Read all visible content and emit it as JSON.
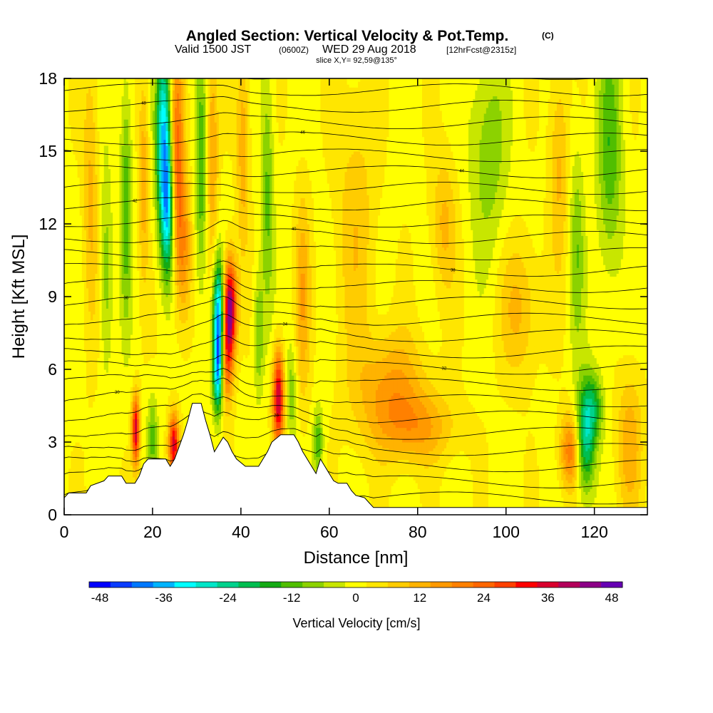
{
  "chart_data": {
    "type": "heatmap",
    "title": "Angled Section: Vertical Velocity & Pot.Temp.",
    "title_units": "(C)",
    "subtitle_prefix": "Valid 1500 JST",
    "subtitle_utc": "(0600Z)",
    "subtitle_date": "WED 29 Aug 2018",
    "subtitle_forecast": "[12hrFcst@2315z]",
    "slice_label": "slice X,Y= 92,59@135°",
    "xlabel": "Distance [nm]",
    "ylabel": "Height [Kft MSL]",
    "xlim": [
      0,
      132
    ],
    "ylim": [
      0,
      18
    ],
    "x_ticks": [
      0,
      20,
      40,
      60,
      80,
      100,
      120
    ],
    "y_ticks": [
      0,
      3,
      6,
      9,
      12,
      15,
      18
    ],
    "colorbar": {
      "label": "Vertical Velocity [cm/s]",
      "min": -48,
      "max": 48,
      "step": 4,
      "tick_values": [
        -48,
        -36,
        -24,
        -12,
        0,
        12,
        24,
        36,
        48
      ],
      "colors": [
        "#0000ff",
        "#0a3cff",
        "#0078ff",
        "#00b4ff",
        "#00ffff",
        "#00e6c8",
        "#00d28c",
        "#00be50",
        "#14aa14",
        "#50be00",
        "#8cd200",
        "#c8e600",
        "#ffff00",
        "#ffe600",
        "#ffcc00",
        "#ffb300",
        "#ff9900",
        "#ff8000",
        "#ff6600",
        "#ff4000",
        "#ff0000",
        "#d9002d",
        "#b3005a",
        "#8c0087",
        "#6600b3"
      ]
    },
    "terrain": [
      [
        0,
        0.7
      ],
      [
        1,
        0.9
      ],
      [
        5,
        0.9
      ],
      [
        6,
        1.2
      ],
      [
        9,
        1.4
      ],
      [
        10,
        1.6
      ],
      [
        13,
        1.6
      ],
      [
        14,
        1.3
      ],
      [
        16,
        1.3
      ],
      [
        17,
        1.6
      ],
      [
        18,
        2.1
      ],
      [
        19,
        2.3
      ],
      [
        23,
        2.3
      ],
      [
        24,
        2.0
      ],
      [
        25,
        2.3
      ],
      [
        26,
        2.8
      ],
      [
        27,
        3.3
      ],
      [
        28,
        3.9
      ],
      [
        29,
        4.6
      ],
      [
        31,
        4.6
      ],
      [
        32,
        3.9
      ],
      [
        33,
        3.3
      ],
      [
        34,
        2.6
      ],
      [
        35,
        2.9
      ],
      [
        36,
        3.2
      ],
      [
        37,
        3.0
      ],
      [
        38,
        2.6
      ],
      [
        39,
        2.3
      ],
      [
        41,
        2.0
      ],
      [
        44,
        2.0
      ],
      [
        45,
        2.3
      ],
      [
        46,
        2.6
      ],
      [
        47,
        3.0
      ],
      [
        49,
        3.3
      ],
      [
        52,
        3.3
      ],
      [
        53,
        3.0
      ],
      [
        54,
        2.6
      ],
      [
        55,
        2.3
      ],
      [
        56,
        2.0
      ],
      [
        57,
        1.7
      ],
      [
        58,
        2.3
      ],
      [
        59,
        2.0
      ],
      [
        60,
        1.7
      ],
      [
        61,
        1.4
      ],
      [
        62,
        1.3
      ],
      [
        64,
        1.3
      ],
      [
        65,
        1.0
      ],
      [
        66,
        0.8
      ],
      [
        68,
        0.7
      ],
      [
        69,
        0.5
      ],
      [
        70,
        0.3
      ],
      [
        132,
        0.3
      ]
    ],
    "theta_levels": [
      24,
      25,
      26,
      27,
      28,
      29,
      30,
      31,
      32,
      33,
      34,
      35,
      36,
      37,
      38,
      39,
      40,
      41,
      42,
      43,
      44,
      45,
      46,
      47,
      48,
      49,
      50
    ],
    "theta_label_values": [
      "28",
      "30",
      "32",
      "34",
      "36",
      "38",
      "40",
      "42",
      "44",
      "46",
      "48",
      "50"
    ],
    "velocity_features": [
      {
        "x": 22.5,
        "z": 15.5,
        "sx": 1.2,
        "sz": 2.8,
        "w": -34
      },
      {
        "x": 23.5,
        "z": 12.5,
        "sx": 1.0,
        "sz": 2.0,
        "w": -26
      },
      {
        "x": 25.5,
        "z": 15.0,
        "sx": 1.1,
        "sz": 3.0,
        "w": 22
      },
      {
        "x": 27.0,
        "z": 11.0,
        "sx": 1.3,
        "sz": 2.2,
        "w": 16
      },
      {
        "x": 35.0,
        "z": 8.2,
        "sx": 0.9,
        "sz": 1.6,
        "w": -40
      },
      {
        "x": 34.8,
        "z": 5.8,
        "sx": 0.8,
        "sz": 1.2,
        "w": -30
      },
      {
        "x": 37.5,
        "z": 8.6,
        "sx": 1.1,
        "sz": 1.4,
        "w": 44
      },
      {
        "x": 36.8,
        "z": 6.3,
        "sx": 1.0,
        "sz": 1.3,
        "w": 22
      },
      {
        "x": 48.5,
        "z": 4.8,
        "sx": 0.9,
        "sz": 1.4,
        "w": 38
      },
      {
        "x": 16.2,
        "z": 3.5,
        "sx": 0.6,
        "sz": 1.0,
        "w": 36
      },
      {
        "x": 24.8,
        "z": 2.9,
        "sx": 0.8,
        "sz": 0.9,
        "w": 34
      },
      {
        "x": 20.0,
        "z": 3.2,
        "sx": 0.8,
        "sz": 1.2,
        "w": -12
      },
      {
        "x": 14.0,
        "z": 13.0,
        "sx": 0.9,
        "sz": 3.5,
        "w": -14
      },
      {
        "x": 18.0,
        "z": 14.0,
        "sx": 0.8,
        "sz": 3.0,
        "w": 12
      },
      {
        "x": 31.0,
        "z": 14.0,
        "sx": 1.0,
        "sz": 3.5,
        "w": -14
      },
      {
        "x": 33.5,
        "z": 15.0,
        "sx": 0.9,
        "sz": 3.0,
        "w": 14
      },
      {
        "x": 40.5,
        "z": 15.0,
        "sx": 1.0,
        "sz": 3.0,
        "w": 12
      },
      {
        "x": 46.0,
        "z": 13.0,
        "sx": 1.0,
        "sz": 3.5,
        "w": -12
      },
      {
        "x": 44.0,
        "z": 7.5,
        "sx": 0.8,
        "sz": 1.8,
        "w": -12
      },
      {
        "x": 51.5,
        "z": 5.0,
        "sx": 0.9,
        "sz": 1.5,
        "w": -10
      },
      {
        "x": 54.0,
        "z": 9.0,
        "sx": 1.2,
        "sz": 3.0,
        "w": 12
      },
      {
        "x": 57.5,
        "z": 3.0,
        "sx": 0.8,
        "sz": 1.0,
        "w": -14
      },
      {
        "x": 74.0,
        "z": 5.2,
        "sx": 5.5,
        "sz": 1.6,
        "w": 14
      },
      {
        "x": 80.0,
        "z": 3.6,
        "sx": 6.0,
        "sz": 1.0,
        "w": 12
      },
      {
        "x": 118.0,
        "z": 3.2,
        "sx": 1.5,
        "sz": 1.6,
        "w": -26
      },
      {
        "x": 120.0,
        "z": 4.5,
        "sx": 1.5,
        "sz": 1.0,
        "w": -14
      },
      {
        "x": 114.5,
        "z": 2.6,
        "sx": 1.6,
        "sz": 1.1,
        "w": 20
      },
      {
        "x": 123.5,
        "z": 15.0,
        "sx": 2.0,
        "sz": 3.5,
        "w": -14
      },
      {
        "x": 116.0,
        "z": 11.0,
        "sx": 1.2,
        "sz": 3.0,
        "w": -10
      },
      {
        "x": 112.0,
        "z": 14.5,
        "sx": 1.5,
        "sz": 3.0,
        "w": 10
      },
      {
        "x": 96.0,
        "z": 15.0,
        "sx": 3.0,
        "sz": 3.0,
        "w": -10
      },
      {
        "x": 86.0,
        "z": 12.0,
        "sx": 2.0,
        "sz": 2.0,
        "w": 10
      },
      {
        "x": 6.0,
        "z": 13.0,
        "sx": 1.2,
        "sz": 4.0,
        "w": 10
      },
      {
        "x": 9.5,
        "z": 10.0,
        "sx": 1.0,
        "sz": 3.0,
        "w": -10
      },
      {
        "x": 103.0,
        "z": 8.5,
        "sx": 3.0,
        "sz": 2.0,
        "w": 10
      },
      {
        "x": 66.0,
        "z": 12.0,
        "sx": 3.0,
        "sz": 4.0,
        "w": 8
      },
      {
        "x": 128.0,
        "z": 3.0,
        "sx": 2.0,
        "sz": 2.0,
        "w": 12
      }
    ]
  }
}
